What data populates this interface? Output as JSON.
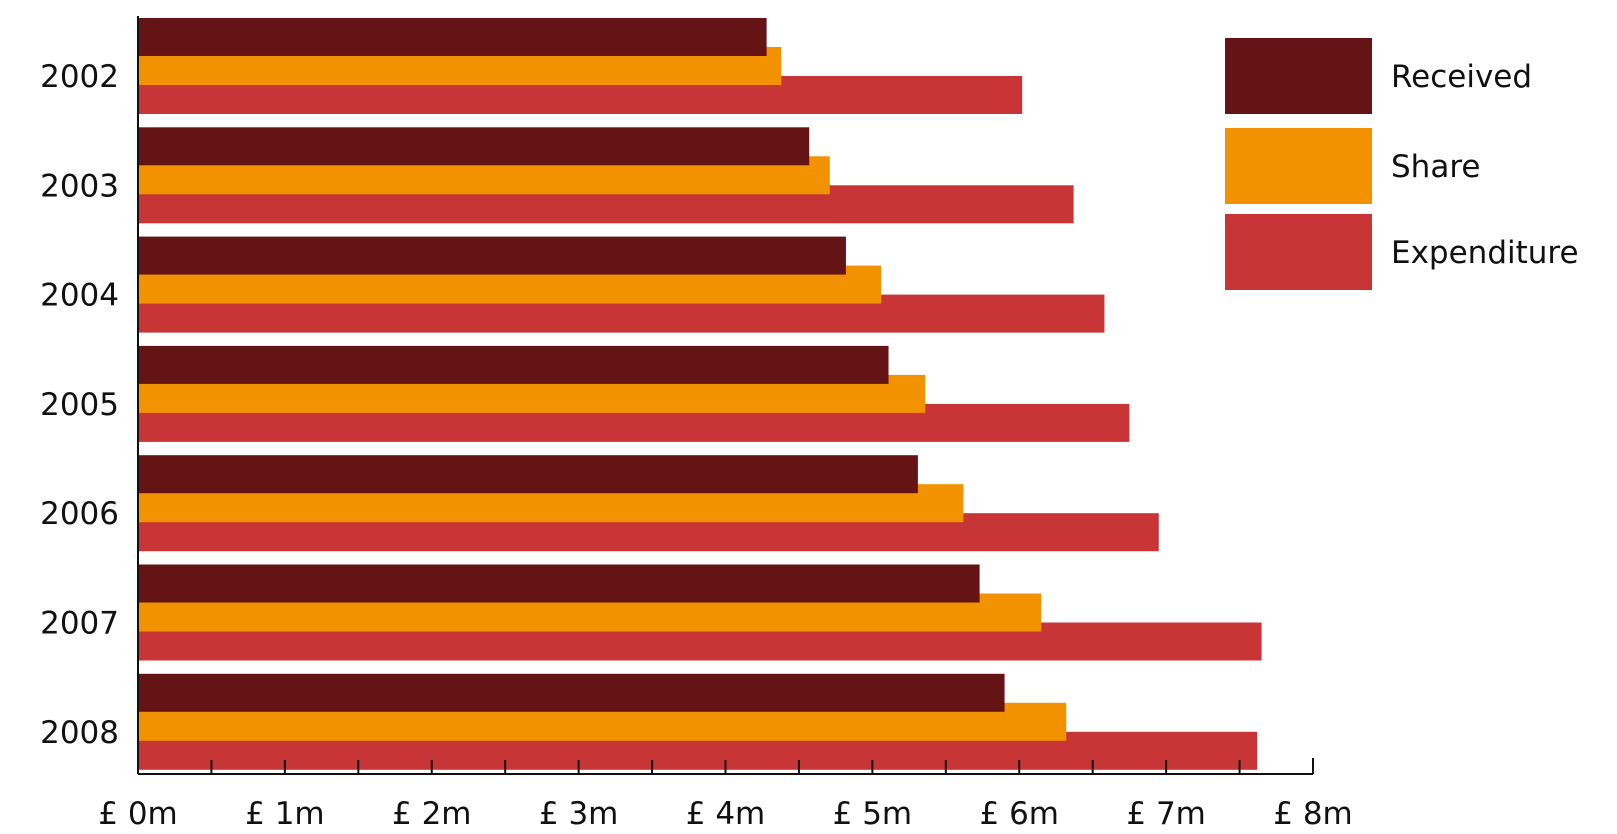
{
  "chart_data": {
    "type": "bar",
    "orientation": "horizontal",
    "categories": [
      "2002",
      "2003",
      "2004",
      "2005",
      "2006",
      "2007",
      "2008"
    ],
    "series": [
      {
        "name": "Received",
        "color": "#651416",
        "values": [
          4.28,
          4.57,
          4.82,
          5.11,
          5.31,
          5.73,
          5.9
        ]
      },
      {
        "name": "Share",
        "color": "#F29200",
        "values": [
          4.38,
          4.71,
          5.06,
          5.36,
          5.62,
          6.15,
          6.32
        ]
      },
      {
        "name": "Expenditure",
        "color": "#C73537",
        "values": [
          6.02,
          6.37,
          6.58,
          6.75,
          6.95,
          7.65,
          7.62
        ]
      }
    ],
    "xticks": [
      "£ 0m",
      "£ 1m",
      "£ 2m",
      "£ 3m",
      "£ 4m",
      "£ 5m",
      "£ 6m",
      "£ 7m",
      "£ 8m"
    ],
    "xlim": [
      0,
      8
    ],
    "minor_tick_step": 0.5,
    "title": "",
    "xlabel": "",
    "ylabel": "",
    "grid": false,
    "legend_position": "top-right"
  }
}
